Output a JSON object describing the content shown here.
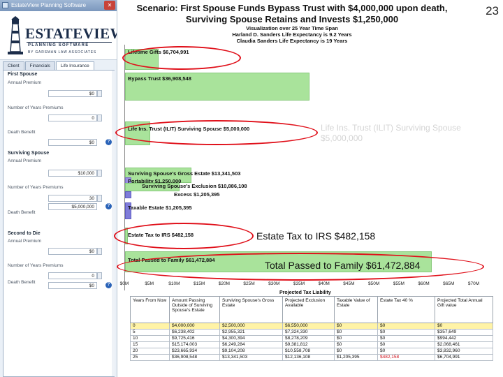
{
  "window": {
    "title": "EstateView Planning Software",
    "close_glyph": "✕"
  },
  "logo": {
    "main": "ESTATEVIEW",
    "sub": "PLANNING SOFTWARE",
    "firm": "BY GARSMAN LAW ASSOCIATES"
  },
  "tabs": [
    "Client",
    "Financials",
    "Life Insurance"
  ],
  "form": {
    "first_spouse": {
      "heading": "First Spouse",
      "annual_premium": {
        "label": "Annual Premium",
        "value": "$0"
      },
      "years": {
        "label": "Number of Years Premiums",
        "value": "0"
      },
      "death_benefit": {
        "label": "Death Benefit",
        "value": "$0"
      }
    },
    "surviving_spouse": {
      "heading": "Surviving Spouse",
      "annual_premium": {
        "label": "Annual Premium",
        "value": "$10,000"
      },
      "years": {
        "label": "Number of Years Premiums",
        "value": "30"
      },
      "death_benefit": {
        "label": "Death Benefit",
        "value": "$5,000,000"
      }
    },
    "second_to_die": {
      "heading": "Second to Die",
      "annual_premium": {
        "label": "Annual Premium",
        "value": "$0"
      },
      "years": {
        "label": "Number of Years Premiums",
        "value": "0"
      },
      "death_benefit": {
        "label": "Death Benefit",
        "value": "$0"
      }
    },
    "help_glyph": "?"
  },
  "slide_number": "23",
  "scenario": {
    "title_line1": "Scenario: First Spouse Funds Bypass Trust with $4,000,000 upon death,",
    "title_line2": "Surviving Spouse Retains and Invests $1,250,000",
    "sub1": "Visualization over 25 Year Time Span",
    "sub2": "Harland D. Sanders Life Expectancy is 9.2 Years",
    "sub3": "Claudia Sanders Life Expectancy is 19 Years"
  },
  "chart_data": {
    "type": "bar",
    "orientation": "horizontal",
    "xlim": [
      0,
      70000000
    ],
    "x_ticks": [
      "$0M",
      "$5M",
      "$10M",
      "$15M",
      "$20M",
      "$25M",
      "$30M",
      "$35M",
      "$40M",
      "$45M",
      "$50M",
      "$55M",
      "$60M",
      "$65M",
      "$70M"
    ],
    "bars": [
      {
        "label": "Lifetime Gifts $6,704,991",
        "value": 6704991,
        "color": "#a9e39b"
      },
      {
        "label": "Bypass Trust $36,908,548",
        "value": 36908548,
        "color": "#a9e39b"
      },
      {
        "label": "Life Ins. Trust (ILIT) Surviving Spouse $5,000,000",
        "value": 5000000,
        "color": "#a9e39b"
      },
      {
        "label": "Surviving Spouse's Gross Estate $13,341,503",
        "value": 13341503,
        "color": "#a9e39b"
      },
      {
        "label": "Portability $1,250,000",
        "value": 1250000,
        "color": "#9a8ee0"
      },
      {
        "label": "Surviving Spouse's Exclusion $10,886,108",
        "value": 10886108,
        "color": "#a9e39b"
      },
      {
        "label": "Excess $1,205,395",
        "value": 1205395,
        "color": "#7f7cd9"
      },
      {
        "label": "Taxable Estate $1,205,395",
        "value": 1205395,
        "color": "#7f7cd9"
      },
      {
        "label": "Estate Tax to IRS $482,158",
        "value": 482158,
        "color": "#a9e39b"
      },
      {
        "label": "Total Passed to Family $61,472,884",
        "value": 61472884,
        "color": "#a9e39b"
      }
    ],
    "annotations": [
      "Life Ins. Trust (ILIT) Surviving Spouse $5,000,000",
      "Estate Tax to IRS $482,158",
      "Total Passed to Family $61,472,884"
    ],
    "highlight_color": "#e0101a"
  },
  "table": {
    "title": "Projected Tax Liability",
    "headers": [
      "Years From Now",
      "Amount Passing Outside of Surviving Spouse's Estate",
      "Surviving Spouse's Gross Estate",
      "Projected Exclusion Available",
      "Taxable Value of Estate",
      "Estate Tax 40 %",
      "Projected Total Annual Gift value"
    ],
    "rows": [
      [
        "0",
        "$4,000,000",
        "$2,500,000",
        "$6,550,000",
        "$0",
        "$0",
        "$0"
      ],
      [
        "5",
        "$6,238,402",
        "$2,955,321",
        "$7,324,330",
        "$0",
        "$0",
        "$357,649"
      ],
      [
        "10",
        "$9,725,416",
        "$4,300,394",
        "$8,278,209",
        "$0",
        "$0",
        "$994,442"
      ],
      [
        "15",
        "$15,174,003",
        "$6,249,284",
        "$9,381,812",
        "$0",
        "$0",
        "$2,068,461"
      ],
      [
        "20",
        "$23,665,934",
        "$9,104,208",
        "$10,558,708",
        "$0",
        "$0",
        "$3,832,960"
      ],
      [
        "25",
        "$36,908,548",
        "$13,341,503",
        "$12,136,108",
        "$1,205,395",
        "$482,158",
        "$6,704,991"
      ]
    ]
  }
}
